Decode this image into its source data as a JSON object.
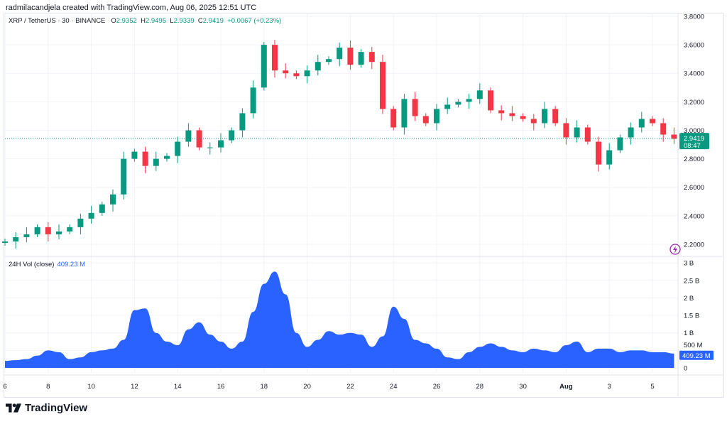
{
  "credit": "radmilacandjela created with TradingView.com, Aug 06, 2025 12:51 UTC",
  "legend": {
    "symbol": "XRP / TetherUS · 30 · BINANCE",
    "open_label": "O",
    "open": "2.9352",
    "high_label": "H",
    "high": "2.9495",
    "low_label": "L",
    "low": "2.9339",
    "close_label": "C",
    "close": "2.9419",
    "change": "+0.0067 (+0.23%)"
  },
  "volume_legend": {
    "label": "24H Vol (close)",
    "value": "409.23 M"
  },
  "price_badge": {
    "price": "2.9419",
    "countdown": "08:47"
  },
  "volume_badge": "409.23 M",
  "logo_text": "TradingView",
  "colors": {
    "up": "#089981",
    "down": "#f23645",
    "volume": "#2962ff",
    "grid": "#f0f3fa"
  },
  "chart_data": [
    {
      "type": "candlestick",
      "ylim": [
        2.15,
        3.82
      ],
      "y_ticks": [
        "3.8000",
        "3.6000",
        "3.4000",
        "3.2000",
        "3.0000",
        "2.8000",
        "2.6000",
        "2.4000",
        "2.2000"
      ],
      "last_price": 2.9419,
      "x_ticks": [
        "6",
        "8",
        "10",
        "12",
        "14",
        "16",
        "18",
        "20",
        "22",
        "24",
        "26",
        "28",
        "30",
        "Aug",
        "3",
        "5"
      ],
      "x_tick_dates": [
        "2025-07-06",
        "2025-07-08",
        "2025-07-10",
        "2025-07-12",
        "2025-07-14",
        "2025-07-16",
        "2025-07-18",
        "2025-07-20",
        "2025-07-22",
        "2025-07-24",
        "2025-07-26",
        "2025-07-28",
        "2025-07-30",
        "2025-08-01",
        "2025-08-03",
        "2025-08-05"
      ],
      "closes": [
        [
          "2025-07-06T00:00",
          2.22
        ],
        [
          "2025-07-06T12:00",
          2.25
        ],
        [
          "2025-07-07T00:00",
          2.27
        ],
        [
          "2025-07-07T12:00",
          2.32
        ],
        [
          "2025-07-08T00:00",
          2.27
        ],
        [
          "2025-07-08T12:00",
          2.29
        ],
        [
          "2025-07-09T00:00",
          2.32
        ],
        [
          "2025-07-09T12:00",
          2.38
        ],
        [
          "2025-07-10T00:00",
          2.42
        ],
        [
          "2025-07-10T12:00",
          2.48
        ],
        [
          "2025-07-11T00:00",
          2.55
        ],
        [
          "2025-07-11T12:00",
          2.8
        ],
        [
          "2025-07-12T00:00",
          2.85
        ],
        [
          "2025-07-12T12:00",
          2.75
        ],
        [
          "2025-07-13T00:00",
          2.8
        ],
        [
          "2025-07-13T12:00",
          2.82
        ],
        [
          "2025-07-14T00:00",
          2.92
        ],
        [
          "2025-07-14T12:00",
          3.0
        ],
        [
          "2025-07-15T00:00",
          2.88
        ],
        [
          "2025-07-15T12:00",
          2.88
        ],
        [
          "2025-07-16T00:00",
          2.93
        ],
        [
          "2025-07-16T12:00",
          3.0
        ],
        [
          "2025-07-17T00:00",
          3.12
        ],
        [
          "2025-07-17T12:00",
          3.3
        ],
        [
          "2025-07-18T00:00",
          3.6
        ],
        [
          "2025-07-18T12:00",
          3.42
        ],
        [
          "2025-07-19T00:00",
          3.4
        ],
        [
          "2025-07-19T12:00",
          3.38
        ],
        [
          "2025-07-20T00:00",
          3.42
        ],
        [
          "2025-07-20T12:00",
          3.48
        ],
        [
          "2025-07-21T00:00",
          3.5
        ],
        [
          "2025-07-21T12:00",
          3.58
        ],
        [
          "2025-07-22T00:00",
          3.46
        ],
        [
          "2025-07-22T12:00",
          3.55
        ],
        [
          "2025-07-23T00:00",
          3.48
        ],
        [
          "2025-07-23T12:00",
          3.15
        ],
        [
          "2025-07-24T00:00",
          3.02
        ],
        [
          "2025-07-24T12:00",
          3.22
        ],
        [
          "2025-07-25T00:00",
          3.1
        ],
        [
          "2025-07-25T12:00",
          3.05
        ],
        [
          "2025-07-26T00:00",
          3.15
        ],
        [
          "2025-07-26T12:00",
          3.18
        ],
        [
          "2025-07-27T00:00",
          3.2
        ],
        [
          "2025-07-27T12:00",
          3.22
        ],
        [
          "2025-07-28T00:00",
          3.28
        ],
        [
          "2025-07-28T12:00",
          3.14
        ],
        [
          "2025-07-29T00:00",
          3.12
        ],
        [
          "2025-07-29T12:00",
          3.1
        ],
        [
          "2025-07-30T00:00",
          3.08
        ],
        [
          "2025-07-30T12:00",
          3.05
        ],
        [
          "2025-07-31T00:00",
          3.15
        ],
        [
          "2025-07-31T12:00",
          3.05
        ],
        [
          "2025-08-01T00:00",
          2.95
        ],
        [
          "2025-08-01T12:00",
          3.02
        ],
        [
          "2025-08-02T00:00",
          2.92
        ],
        [
          "2025-08-02T12:00",
          2.76
        ],
        [
          "2025-08-03T00:00",
          2.86
        ],
        [
          "2025-08-03T12:00",
          2.95
        ],
        [
          "2025-08-04T00:00",
          3.02
        ],
        [
          "2025-08-04T12:00",
          3.08
        ],
        [
          "2025-08-05T00:00",
          3.05
        ],
        [
          "2025-08-05T12:00",
          2.97
        ],
        [
          "2025-08-06T00:00",
          2.94
        ]
      ]
    },
    {
      "type": "area",
      "name": "24H Vol (close)",
      "unit": "B",
      "ylim": [
        0,
        3.05
      ],
      "y_ticks": [
        "3 B",
        "2.5 B",
        "2 B",
        "1.5 B",
        "1 B",
        "500 M",
        "0"
      ],
      "values": [
        0.2,
        0.22,
        0.25,
        0.35,
        0.5,
        0.45,
        0.25,
        0.3,
        0.45,
        0.5,
        0.55,
        0.8,
        1.65,
        1.7,
        1.0,
        0.75,
        0.65,
        1.1,
        1.3,
        0.95,
        0.75,
        0.55,
        0.75,
        1.6,
        2.4,
        2.75,
        2.1,
        1.0,
        0.6,
        0.8,
        1.05,
        0.95,
        1.0,
        0.95,
        0.6,
        0.9,
        1.75,
        1.4,
        0.8,
        0.7,
        0.55,
        0.3,
        0.25,
        0.45,
        0.6,
        0.7,
        0.6,
        0.5,
        0.45,
        0.55,
        0.5,
        0.45,
        0.65,
        0.75,
        0.45,
        0.55,
        0.55,
        0.45,
        0.5,
        0.5,
        0.45,
        0.45,
        0.41
      ]
    }
  ]
}
